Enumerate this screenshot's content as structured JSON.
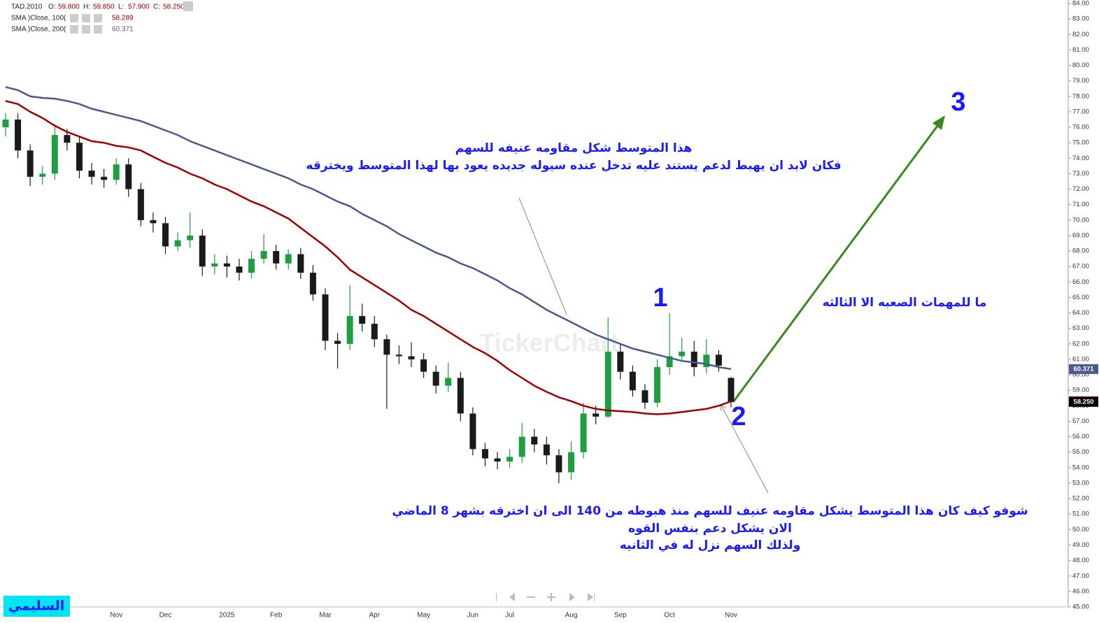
{
  "chart_data": {
    "type": "candlestick",
    "header": {
      "symbol": "TAD.2010",
      "items": [
        {
          "name": "O:",
          "value": 59.8,
          "label": "59.800"
        },
        {
          "name": "H:",
          "value": 59.85,
          "label": "59.850"
        },
        {
          "name": "L:",
          "value": 57.9,
          "label": "57.900"
        },
        {
          "name": "C:",
          "value": 58.25,
          "label": "58.250"
        }
      ]
    },
    "categories": [
      null,
      null,
      null,
      null,
      null,
      null,
      null,
      null,
      null,
      "Nov",
      null,
      null,
      null,
      "Dec",
      null,
      null,
      null,
      null,
      "2025",
      null,
      null,
      null,
      "Feb",
      null,
      null,
      null,
      "Mar",
      null,
      null,
      null,
      "Apr",
      null,
      null,
      null,
      "May",
      null,
      null,
      null,
      "Jun",
      null,
      null,
      "Jul",
      null,
      null,
      null,
      null,
      "Aug",
      null,
      null,
      null,
      "Sep",
      null,
      null,
      null,
      "Oct",
      null,
      null,
      null,
      null,
      "Nov"
    ],
    "open": [
      76.0,
      76.5,
      74.5,
      72.8,
      73.0,
      75.5,
      75.0,
      73.2,
      72.8,
      72.6,
      73.6,
      72.0,
      70.0,
      69.8,
      68.3,
      68.7,
      69.0,
      67.0,
      67.2,
      67.0,
      66.6,
      67.5,
      68.0,
      67.2,
      67.8,
      66.6,
      65.2,
      62.2,
      62.0,
      63.8,
      63.3,
      62.3,
      61.3,
      61.2,
      61.0,
      60.2,
      59.3,
      59.8,
      57.5,
      55.2,
      54.6,
      54.4,
      54.7,
      56.0,
      55.5,
      54.8,
      53.7,
      55.0,
      57.5,
      57.3,
      61.5,
      60.2,
      59.0,
      58.2,
      60.5,
      61.2,
      61.5,
      60.5,
      61.3,
      59.8
    ],
    "high": [
      76.9,
      76.9,
      74.9,
      73.5,
      76.2,
      75.9,
      75.4,
      73.7,
      73.3,
      74.0,
      74.0,
      72.4,
      70.5,
      70.2,
      69.2,
      70.5,
      69.4,
      67.8,
      67.7,
      67.5,
      68.0,
      69.1,
      68.4,
      68.1,
      68.2,
      67.1,
      65.6,
      62.7,
      65.8,
      64.6,
      63.8,
      62.6,
      61.9,
      62.1,
      61.4,
      60.6,
      60.8,
      60.2,
      57.9,
      55.6,
      55.0,
      55.2,
      56.9,
      56.5,
      56.0,
      55.2,
      55.7,
      58.2,
      58.0,
      63.7,
      62.0,
      60.6,
      59.4,
      61.0,
      64.0,
      62.4,
      62.2,
      62.3,
      61.6,
      59.85
    ],
    "low": [
      75.4,
      74.0,
      72.2,
      72.3,
      72.6,
      74.5,
      72.7,
      72.3,
      72.1,
      72.3,
      71.5,
      69.6,
      69.2,
      67.8,
      68.0,
      68.2,
      66.4,
      66.5,
      66.3,
      66.1,
      66.2,
      67.2,
      66.8,
      66.8,
      66.2,
      64.8,
      61.6,
      60.4,
      61.6,
      62.8,
      61.8,
      57.8,
      60.7,
      60.5,
      59.8,
      58.8,
      58.9,
      57.0,
      54.8,
      54.1,
      53.9,
      54.0,
      54.3,
      55.0,
      54.2,
      53.0,
      53.2,
      54.6,
      56.8,
      57.2,
      59.7,
      58.6,
      57.8,
      57.9,
      60.0,
      60.9,
      59.9,
      60.1,
      60.2,
      57.9
    ],
    "close": [
      76.5,
      74.5,
      72.8,
      73.0,
      75.5,
      75.0,
      73.2,
      72.8,
      72.6,
      73.6,
      72.0,
      70.0,
      69.8,
      68.3,
      68.7,
      69.0,
      67.0,
      67.2,
      67.0,
      66.6,
      67.5,
      68.0,
      67.2,
      67.8,
      66.6,
      65.2,
      62.2,
      62.0,
      63.8,
      63.3,
      62.3,
      61.3,
      61.2,
      61.0,
      60.2,
      59.3,
      59.8,
      57.5,
      55.2,
      54.6,
      54.4,
      54.7,
      56.0,
      55.5,
      54.8,
      53.7,
      55.0,
      57.5,
      57.3,
      61.5,
      60.2,
      59.0,
      58.2,
      60.5,
      61.2,
      61.5,
      60.5,
      61.3,
      60.6,
      58.25
    ],
    "up_color": "#1e9e3e",
    "down_color": "#1a1a1a",
    "series": [
      {
        "name": "SMA )Close, 100(",
        "color": "#a00000",
        "values": [
          77.7,
          77.5,
          77.0,
          76.6,
          76.1,
          75.7,
          75.4,
          75.1,
          75.0,
          74.8,
          74.7,
          74.5,
          74.1,
          73.7,
          73.4,
          73.0,
          72.7,
          72.3,
          72.0,
          71.6,
          71.2,
          70.9,
          70.5,
          70.1,
          69.5,
          68.9,
          68.3,
          67.6,
          66.8,
          66.3,
          65.8,
          65.3,
          64.8,
          64.2,
          63.8,
          63.3,
          62.8,
          62.3,
          61.8,
          61.4,
          60.9,
          60.3,
          59.8,
          59.3,
          58.9,
          58.55,
          58.3,
          58.0,
          57.8,
          57.7,
          57.65,
          57.6,
          57.5,
          57.45,
          57.5,
          57.6,
          57.7,
          57.8,
          58.0,
          58.289
        ]
      },
      {
        "name": "SMA )Close, 200(",
        "color": "#4a5a8c",
        "values": [
          78.6,
          78.4,
          78.0,
          77.9,
          77.85,
          77.7,
          77.5,
          77.2,
          77.0,
          76.8,
          76.6,
          76.4,
          76.1,
          75.8,
          75.5,
          75.1,
          74.8,
          74.5,
          74.2,
          73.9,
          73.6,
          73.3,
          73.0,
          72.7,
          72.3,
          72.0,
          71.6,
          71.2,
          70.9,
          70.4,
          70.0,
          69.6,
          69.1,
          68.7,
          68.3,
          67.9,
          67.6,
          67.2,
          66.9,
          66.5,
          66.1,
          65.6,
          65.2,
          64.7,
          64.2,
          63.8,
          63.4,
          63.0,
          62.6,
          62.3,
          62.0,
          61.7,
          61.5,
          61.3,
          61.1,
          60.9,
          60.8,
          60.7,
          60.5,
          60.371
        ]
      }
    ],
    "ylim": [
      45,
      84
    ],
    "yticks": [
      {
        "value": 45,
        "label": "45.00"
      },
      {
        "value": 46,
        "label": "46.00"
      },
      {
        "value": 47,
        "label": "47.00"
      },
      {
        "value": 48,
        "label": "48.00"
      },
      {
        "value": 49,
        "label": "49.00"
      },
      {
        "value": 50,
        "label": "50.00"
      },
      {
        "value": 51,
        "label": "51.00"
      },
      {
        "value": 52,
        "label": "52.00"
      },
      {
        "value": 53,
        "label": "53.00"
      },
      {
        "value": 54,
        "label": "54.00"
      },
      {
        "value": 55,
        "label": "55.00"
      },
      {
        "value": 56,
        "label": "56.00"
      },
      {
        "value": 57,
        "label": "57.00"
      },
      {
        "value": 58,
        "label": "58.00"
      },
      {
        "value": 59,
        "label": "59.00"
      },
      {
        "value": 60,
        "label": "60.00"
      },
      {
        "value": 61,
        "label": "61.00"
      },
      {
        "value": 62,
        "label": "62.00"
      },
      {
        "value": 63,
        "label": "63.00"
      },
      {
        "value": 64,
        "label": "64.00"
      },
      {
        "value": 65,
        "label": "65.00"
      },
      {
        "value": 66,
        "label": "66.00"
      },
      {
        "value": 67,
        "label": "67.00"
      },
      {
        "value": 68,
        "label": "68.00"
      },
      {
        "value": 69,
        "label": "69.00"
      },
      {
        "value": 70,
        "label": "70.00"
      },
      {
        "value": 71,
        "label": "71.00"
      },
      {
        "value": 72,
        "label": "72.00"
      },
      {
        "value": 73,
        "label": "73.00"
      },
      {
        "value": 74,
        "label": "74.00"
      },
      {
        "value": 75,
        "label": "75.00"
      },
      {
        "value": 76,
        "label": "76.00"
      },
      {
        "value": 77,
        "label": "77.00"
      },
      {
        "value": 78,
        "label": "78.00"
      },
      {
        "value": 79,
        "label": "79.00"
      },
      {
        "value": 80,
        "label": "80.00"
      },
      {
        "value": 81,
        "label": "81.00"
      },
      {
        "value": 82,
        "label": "82.00"
      },
      {
        "value": 83,
        "label": "83.00"
      },
      {
        "value": 84,
        "label": "84.00"
      }
    ],
    "grid": false,
    "annotations": [
      "هذا المتوسط شكل مقاومه عنيفه للسهم",
      "فكان لابد ان يهبط لدعم يستند عليه تدخل عنده سيوله جديده يعود بها لهذا المتوسط ويخترقه",
      "ما للمهمات الصعبه الا الثالثه",
      "شوفو كيف كان هذا المتوسط يشكل مقاومه عنيف للسهم منذ هبوطه من 140 الى ان اخترقه بشهر 8 الماضي",
      "الان يشكل دعم بنفس القوه",
      "ولذلك السهم نزل له في الثانيه"
    ],
    "markers": [
      "1",
      "2",
      "3"
    ],
    "watermark": "TickerChart",
    "signature": "السليمي"
  }
}
